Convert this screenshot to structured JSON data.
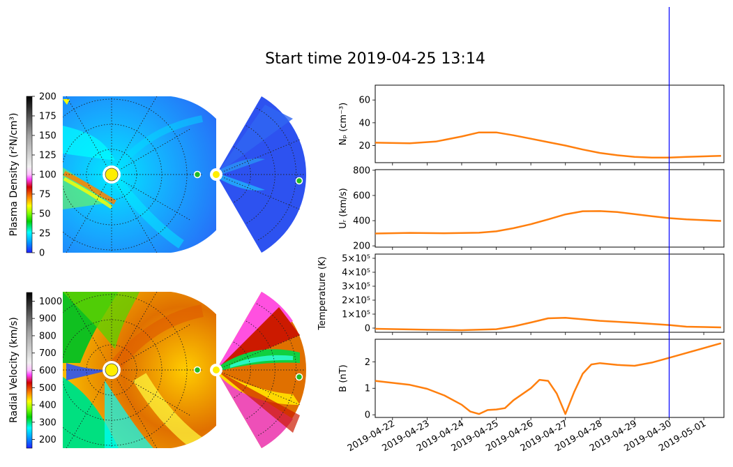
{
  "title": "Start time 2019-04-25 13:14",
  "maps": [
    {
      "colorbar_label": "Plasma Density (r²N/cm³)",
      "colorbar_ticks": [
        "0",
        "25",
        "50",
        "75",
        "100",
        "125",
        "150",
        "175",
        "200"
      ],
      "colorbar_range": [
        0,
        200
      ]
    },
    {
      "colorbar_label": "Radial Velocity (km/s)",
      "colorbar_ticks": [
        "200",
        "300",
        "400",
        "500",
        "600",
        "700",
        "800",
        "900",
        "1000"
      ],
      "colorbar_range": [
        150,
        1050
      ]
    }
  ],
  "colors": {
    "series": "#ff7f0e",
    "marker": "#0000ff"
  },
  "chart_data": [
    {
      "type": "line",
      "ylabel": "Nₚ (cm⁻³)",
      "ylim": [
        5,
        73
      ],
      "yticks": [
        20,
        40,
        60
      ],
      "ytick_labels": [
        "20",
        "40",
        "60"
      ],
      "x": [
        "2019-04-21 12:00",
        "2019-04-22 12:00",
        "2019-04-23 06:00",
        "2019-04-24 00:00",
        "2019-04-24 12:00",
        "2019-04-25 00:00",
        "2019-04-25 12:00",
        "2019-04-26 00:00",
        "2019-04-26 12:00",
        "2019-04-27 00:00",
        "2019-04-27 12:00",
        "2019-04-28 00:00",
        "2019-04-28 12:00",
        "2019-04-29 00:00",
        "2019-04-29 12:00",
        "2019-04-30 00:00",
        "2019-04-30 12:00",
        "2019-05-01 00:00",
        "2019-05-01 12:00"
      ],
      "y": [
        22.5,
        22.0,
        23.5,
        28.0,
        31.5,
        31.5,
        29.0,
        26.0,
        23.0,
        20.0,
        16.5,
        13.5,
        11.5,
        10.0,
        9.5,
        9.5,
        10.0,
        10.5,
        11.0
      ]
    },
    {
      "type": "line",
      "ylabel": "Uᵣ (km/s)",
      "ylim": [
        190,
        805
      ],
      "yticks": [
        200,
        400,
        600,
        800
      ],
      "ytick_labels": [
        "200",
        "400",
        "600",
        "800"
      ],
      "x": [
        "2019-04-21 12:00",
        "2019-04-22 12:00",
        "2019-04-23 12:00",
        "2019-04-24 12:00",
        "2019-04-25 00:00",
        "2019-04-25 12:00",
        "2019-04-26 00:00",
        "2019-04-26 12:00",
        "2019-04-27 00:00",
        "2019-04-27 12:00",
        "2019-04-28 00:00",
        "2019-04-28 12:00",
        "2019-04-29 00:00",
        "2019-04-29 12:00",
        "2019-04-30 00:00",
        "2019-04-30 12:00",
        "2019-05-01 12:00"
      ],
      "y": [
        298,
        303,
        300,
        304,
        315,
        340,
        372,
        410,
        450,
        475,
        476,
        468,
        452,
        435,
        420,
        410,
        398
      ]
    },
    {
      "type": "line",
      "ylabel": "Temperature (K)",
      "ylim": [
        -30000,
        530000
      ],
      "yticks": [
        0,
        100000,
        200000,
        300000,
        400000,
        500000
      ],
      "ytick_labels": [
        "0",
        "1×10⁵",
        "2×10⁵",
        "3×10⁵",
        "4×10⁵",
        "5×10⁵"
      ],
      "x": [
        "2019-04-21 12:00",
        "2019-04-23 00:00",
        "2019-04-24 00:00",
        "2019-04-25 00:00",
        "2019-04-25 12:00",
        "2019-04-26 00:00",
        "2019-04-26 12:00",
        "2019-04-27 00:00",
        "2019-04-27 12:00",
        "2019-04-28 00:00",
        "2019-04-29 00:00",
        "2019-04-30 00:00",
        "2019-04-30 12:00",
        "2019-05-01 12:00"
      ],
      "y": [
        -5000,
        -12000,
        -15000,
        -8000,
        12000,
        40000,
        70000,
        74000,
        63000,
        52000,
        38000,
        22000,
        10000,
        5000
      ]
    },
    {
      "type": "line",
      "ylabel": "B (nT)",
      "ylim": [
        -0.1,
        2.85
      ],
      "yticks": [
        0,
        1,
        2
      ],
      "ytick_labels": [
        "0",
        "1",
        "2"
      ],
      "x": [
        "2019-04-21 12:00",
        "2019-04-22 12:00",
        "2019-04-23 00:00",
        "2019-04-23 12:00",
        "2019-04-24 00:00",
        "2019-04-24 06:00",
        "2019-04-24 12:00",
        "2019-04-24 18:00",
        "2019-04-25 00:00",
        "2019-04-25 06:00",
        "2019-04-25 12:00",
        "2019-04-26 00:00",
        "2019-04-26 06:00",
        "2019-04-26 12:00",
        "2019-04-26 18:00",
        "2019-04-27 00:00",
        "2019-04-27 06:00",
        "2019-04-27 12:00",
        "2019-04-27 18:00",
        "2019-04-28 00:00",
        "2019-04-28 12:00",
        "2019-04-29 00:00",
        "2019-04-29 12:00",
        "2019-04-30 00:00",
        "2019-05-01 12:00"
      ],
      "y": [
        1.28,
        1.13,
        0.98,
        0.73,
        0.38,
        0.12,
        0.03,
        0.18,
        0.2,
        0.25,
        0.55,
        1.0,
        1.32,
        1.28,
        0.8,
        0.03,
        0.85,
        1.55,
        1.9,
        1.95,
        1.88,
        1.85,
        1.97,
        2.15,
        2.7
      ]
    }
  ],
  "xaxis": {
    "ticks": [
      "2019-04-22",
      "2019-04-23",
      "2019-04-24",
      "2019-04-25",
      "2019-04-26",
      "2019-04-27",
      "2019-04-28",
      "2019-04-29",
      "2019-04-30",
      "2019-05-01"
    ],
    "xlim": [
      "2019-04-21 12:00",
      "2019-05-01 14:00"
    ],
    "marker_time": "2019-04-30 00:00"
  }
}
